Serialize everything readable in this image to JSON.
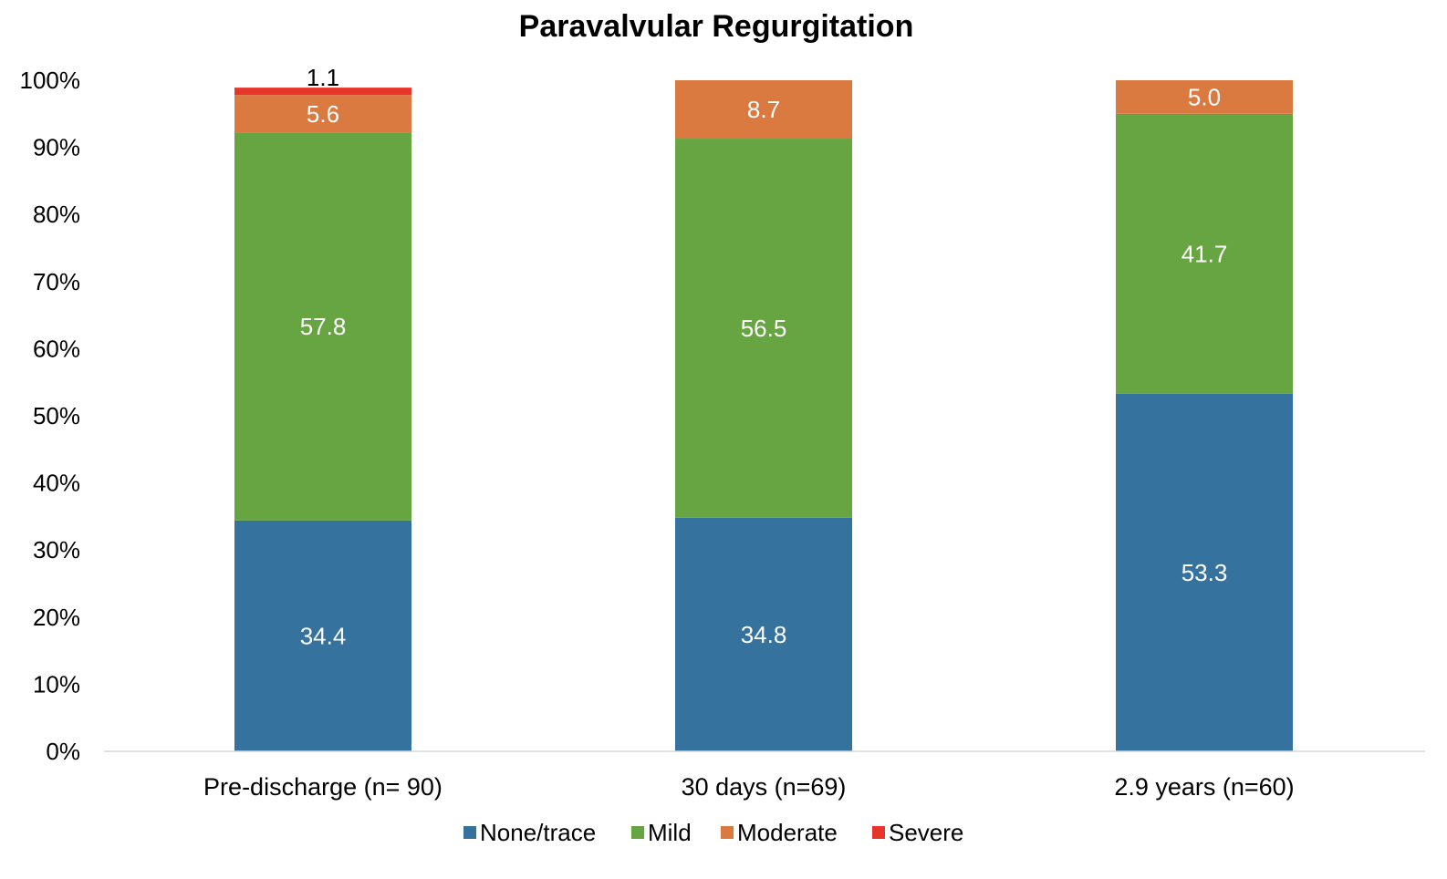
{
  "chart_data": {
    "type": "bar",
    "stacked": true,
    "title": "Paravalvular Regurgitation",
    "xlabel": "",
    "ylabel": "",
    "ylim": [
      0,
      100
    ],
    "y_ticks": [
      0,
      10,
      20,
      30,
      40,
      50,
      60,
      70,
      80,
      90,
      100
    ],
    "y_tick_labels": [
      "0%",
      "10%",
      "20%",
      "30%",
      "40%",
      "50%",
      "60%",
      "70%",
      "80%",
      "90%",
      "100%"
    ],
    "categories": [
      "Pre-discharge (n= 90)",
      "30 days (n=69)",
      "2.9 years (n=60)"
    ],
    "series": [
      {
        "name": "None/trace",
        "color": "#35729e",
        "label_color": "#ffffff",
        "values": [
          34.4,
          34.8,
          53.3
        ],
        "labels": [
          "34.4",
          "34.8",
          "53.3"
        ]
      },
      {
        "name": "Mild",
        "color": "#66a541",
        "label_color": "#ffffff",
        "values": [
          57.8,
          56.5,
          41.7
        ],
        "labels": [
          "57.8",
          "56.5",
          "41.7"
        ]
      },
      {
        "name": "Moderate",
        "color": "#da7940",
        "label_color": "#ffffff",
        "values": [
          5.6,
          8.7,
          5.0
        ],
        "labels": [
          "5.6",
          "8.7",
          "5.0"
        ]
      },
      {
        "name": "Severe",
        "color": "#e8352b",
        "label_color": "#000000",
        "values": [
          1.1,
          0,
          0
        ],
        "labels": [
          "1.1",
          "",
          ""
        ]
      }
    ],
    "grid": false,
    "legend_position": "bottom"
  }
}
